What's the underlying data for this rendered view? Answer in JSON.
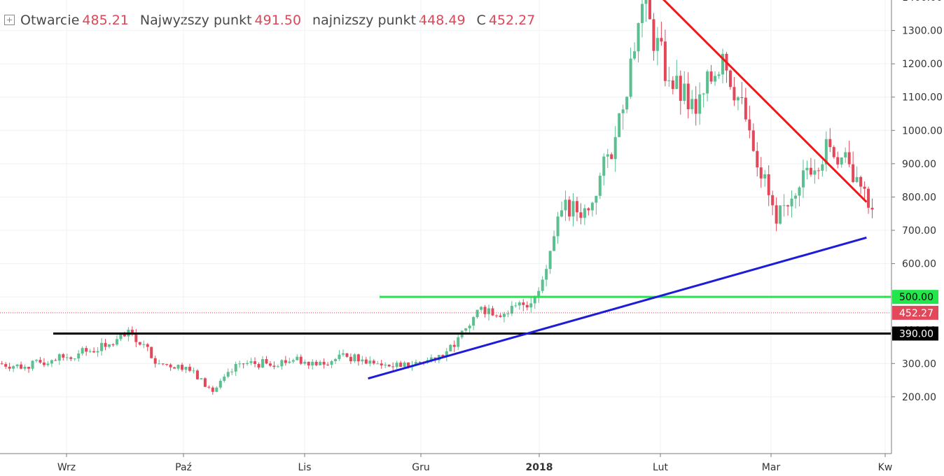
{
  "legend": {
    "open_label": "Otwarcie",
    "open_value": "485.21",
    "high_label": "Najwyzszy punkt",
    "high_value": "491.50",
    "low_label": "najnizszy punkt",
    "low_value": "448.49",
    "close_label": "C",
    "close_value": "452.27"
  },
  "colors": {
    "up": "#5bbf8f",
    "down": "#e2485a",
    "grid": "#eef2f5",
    "support_green": "#22e64a",
    "support_black": "#000000",
    "trend_blue": "#1c1cd9",
    "trend_red": "#f01818"
  },
  "chart_data": {
    "type": "candlestick",
    "y_axis": {
      "min": 150,
      "max": 1460,
      "ticks": [
        200,
        300,
        400,
        500,
        600,
        700,
        800,
        900,
        1000,
        1100,
        1200,
        1300,
        1400
      ],
      "tick_labels": [
        "200.00",
        "300.00",
        "400.00",
        "500.00",
        "600.00",
        "700.00",
        "800.00",
        "900.00",
        "1000.00",
        "1100.00",
        "1200.00",
        "1300.00",
        "1400.00"
      ]
    },
    "x_axis": {
      "labels": [
        "Wrz",
        "Paź",
        "Lis",
        "Gru",
        "2018",
        "Lut",
        "Mar",
        "Kw"
      ]
    },
    "grid": true,
    "price_labels": [
      {
        "text": "500.00",
        "value": 500,
        "style": "green"
      },
      {
        "text": "452.27",
        "value": 452.27,
        "style": "red"
      },
      {
        "text": "390.00",
        "value": 390,
        "style": "black"
      }
    ],
    "horizontal_levels": [
      {
        "value": 500,
        "color": "support_green"
      },
      {
        "value": 390,
        "color": "support_black"
      }
    ],
    "trend_lines": [
      {
        "color": "trend_blue",
        "from": {
          "date": "2017-11-05",
          "value": 255
        },
        "to": {
          "date": "2018-03-15",
          "value": 678
        }
      },
      {
        "color": "trend_red",
        "from": {
          "date": "2018-01-18",
          "value": 1428
        },
        "to": {
          "date": "2018-03-15",
          "value": 785
        }
      }
    ],
    "candles_weekly_approx": [
      [
        "2017-08-01",
        300,
        290
      ],
      [
        "2017-08-08",
        290,
        310
      ],
      [
        "2017-08-15",
        310,
        330
      ],
      [
        "2017-08-22",
        330,
        350
      ],
      [
        "2017-08-29",
        350,
        390
      ],
      [
        "2017-09-05",
        390,
        300
      ],
      [
        "2017-09-12",
        300,
        290
      ],
      [
        "2017-09-19",
        290,
        215
      ],
      [
        "2017-09-26",
        215,
        300
      ],
      [
        "2017-10-03",
        300,
        300
      ],
      [
        "2017-10-10",
        300,
        310
      ],
      [
        "2017-10-17",
        310,
        305
      ],
      [
        "2017-10-24",
        305,
        320
      ],
      [
        "2017-10-31",
        320,
        300
      ],
      [
        "2017-11-07",
        300,
        290
      ],
      [
        "2017-11-14",
        290,
        310
      ],
      [
        "2017-11-21",
        310,
        350
      ],
      [
        "2017-11-28",
        350,
        470
      ],
      [
        "2017-12-05",
        470,
        450
      ],
      [
        "2017-12-12",
        450,
        500
      ],
      [
        "2017-12-19",
        500,
        760
      ],
      [
        "2017-12-26",
        760,
        760
      ],
      [
        "2018-01-02",
        760,
        980
      ],
      [
        "2018-01-09",
        980,
        1380
      ],
      [
        "2018-01-16",
        1380,
        1150
      ],
      [
        "2018-01-23",
        1150,
        1050
      ],
      [
        "2018-01-30",
        1050,
        1230
      ],
      [
        "2018-02-06",
        1230,
        1000
      ],
      [
        "2018-02-13",
        1000,
        720
      ],
      [
        "2018-02-20",
        720,
        880
      ],
      [
        "2018-02-27",
        880,
        950
      ],
      [
        "2018-03-06",
        950,
        860
      ],
      [
        "2018-03-13",
        860,
        700
      ],
      [
        "2018-03-20",
        700,
        560
      ],
      [
        "2018-03-27",
        560,
        452.27
      ]
    ]
  }
}
